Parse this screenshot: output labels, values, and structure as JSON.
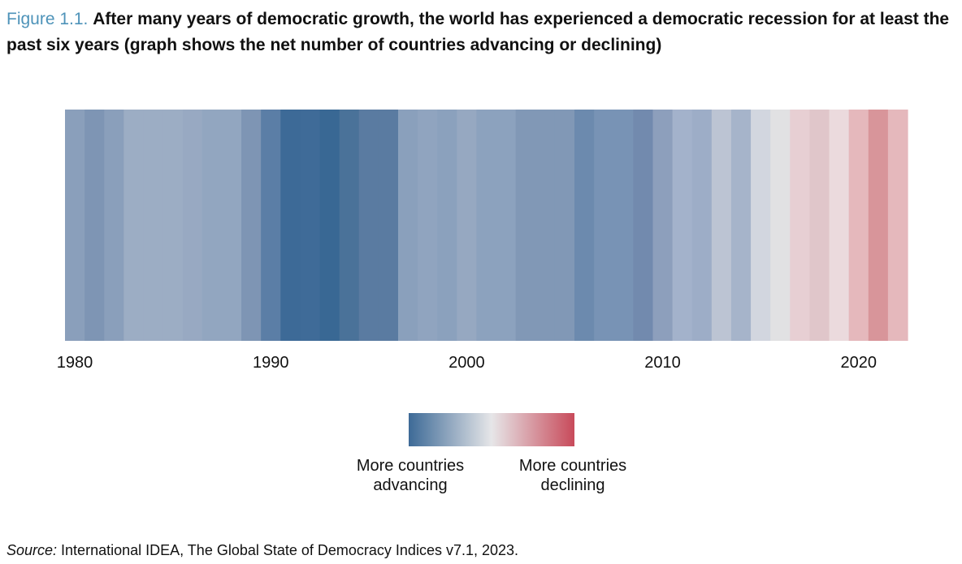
{
  "figure": {
    "label": "Figure 1.1.",
    "title": "After many years of democratic growth, the world has experienced a democratic recession for at least the past six years (graph shows the net number of countries advancing or declining)"
  },
  "chart_data": {
    "type": "heatmap",
    "title": "",
    "xlabel": "",
    "ylabel": "",
    "x": [
      1980,
      1981,
      1982,
      1983,
      1984,
      1985,
      1986,
      1987,
      1988,
      1989,
      1990,
      1991,
      1992,
      1993,
      1994,
      1995,
      1996,
      1997,
      1998,
      1999,
      2000,
      2001,
      2002,
      2003,
      2004,
      2005,
      2006,
      2007,
      2008,
      2009,
      2010,
      2011,
      2012,
      2013,
      2014,
      2015,
      2016,
      2017,
      2018,
      2019,
      2020,
      2021,
      2022
    ],
    "colors": [
      "#8a9fbb",
      "#7e95b4",
      "#8a9fbb",
      "#9cadc4",
      "#9cadc4",
      "#9cadc4",
      "#98a9c2",
      "#92a6c0",
      "#92a6c0",
      "#7e95b4",
      "#5b7ea6",
      "#3d6a97",
      "#3f6b98",
      "#396894",
      "#4a7299",
      "#5a7ba1",
      "#5a7ba1",
      "#8aa0bc",
      "#90a4bf",
      "#8ba1bd",
      "#96a8c1",
      "#8ca2be",
      "#8ca2be",
      "#8198b6",
      "#8198b6",
      "#8198b6",
      "#6c8aae",
      "#7893b5",
      "#7893b5",
      "#728aae",
      "#8d9fbc",
      "#a3b2cb",
      "#9dadc7",
      "#bcc4d3",
      "#a6b4ca",
      "#d2d6df",
      "#e1e1e3",
      "#e7cfd3",
      "#e0c6ca",
      "#ebdadd",
      "#e5b8bc",
      "#d8959a",
      "#e5b8bc"
    ],
    "x_tick_labels": [
      "1980",
      "1990",
      "2000",
      "2010",
      "2020"
    ],
    "x_tick_years": [
      1980,
      1990,
      2000,
      2010,
      2020
    ],
    "color_scale": {
      "low_color": "#3d6a97",
      "mid_color": "#e6e6e8",
      "high_color": "#c84a5a",
      "low_label": "More countries advancing",
      "high_label": "More countries declining"
    },
    "legend_placement": "bottom-center",
    "grid": false
  },
  "legend": {
    "left_label": "More countries\nadvancing",
    "right_label": "More countries\ndeclining"
  },
  "source": {
    "prefix": "Source:",
    "text": " International IDEA, The Global State of Democracy Indices v7.1, 2023."
  }
}
